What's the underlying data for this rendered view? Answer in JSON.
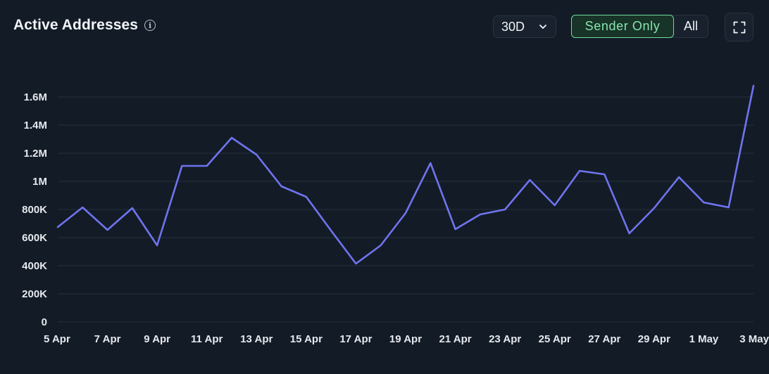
{
  "header": {
    "title": "Active Addresses",
    "info_icon": "info-icon",
    "range": {
      "selected": "30D"
    },
    "toggle": {
      "options": [
        "Sender Only",
        "All"
      ],
      "active": "Sender Only"
    },
    "fullscreen_icon": "expand-icon"
  },
  "colors": {
    "line": "#6f74ee",
    "active_toggle": "#86e6ad",
    "background": "#131b26"
  },
  "chart_data": {
    "type": "line",
    "title": "Active Addresses",
    "xlabel": "",
    "ylabel": "",
    "ylim": [
      0,
      1600000
    ],
    "yticks": [
      0,
      200000,
      400000,
      600000,
      800000,
      1000000,
      1200000,
      1400000,
      1600000
    ],
    "ytick_labels": [
      "0",
      "200K",
      "400K",
      "600K",
      "800K",
      "1M",
      "1.2M",
      "1.4M",
      "1.6M"
    ],
    "xtick_labels": [
      "5 Apr",
      "7 Apr",
      "9 Apr",
      "11 Apr",
      "13 Apr",
      "15 Apr",
      "17 Apr",
      "19 Apr",
      "21 Apr",
      "23 Apr",
      "25 Apr",
      "27 Apr",
      "29 Apr",
      "1 May",
      "3 May"
    ],
    "grid": true,
    "legend": "none",
    "x": [
      "5 Apr",
      "6 Apr",
      "7 Apr",
      "8 Apr",
      "9 Apr",
      "10 Apr",
      "11 Apr",
      "12 Apr",
      "13 Apr",
      "14 Apr",
      "15 Apr",
      "16 Apr",
      "17 Apr",
      "18 Apr",
      "19 Apr",
      "20 Apr",
      "21 Apr",
      "22 Apr",
      "23 Apr",
      "24 Apr",
      "25 Apr",
      "26 Apr",
      "27 Apr",
      "28 Apr",
      "29 Apr",
      "30 Apr",
      "1 May",
      "2 May",
      "3 May"
    ],
    "series": [
      {
        "values": [
          675000,
          815000,
          655000,
          810000,
          545000,
          1110000,
          1110000,
          1310000,
          1190000,
          965000,
          890000,
          650000,
          415000,
          545000,
          775000,
          1130000,
          660000,
          765000,
          800000,
          1010000,
          830000,
          1075000,
          1050000,
          630000,
          810000,
          1030000,
          850000,
          815000,
          1680000
        ]
      }
    ]
  }
}
